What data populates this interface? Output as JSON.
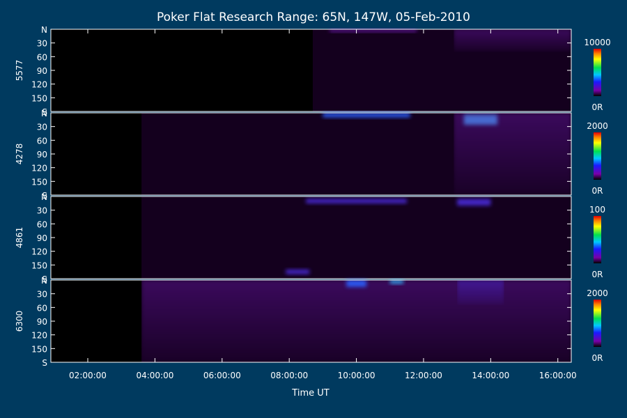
{
  "chart_data": {
    "type": "heatmap",
    "title": "Poker Flat Research Range: 65N, 147W, 05-Feb-2010",
    "xlabel": "Time UT",
    "x_range_hours": [
      0.9,
      16.4
    ],
    "x_ticks": [
      "02:00:00",
      "04:00:00",
      "06:00:00",
      "08:00:00",
      "10:00:00",
      "12:00:00",
      "14:00:00",
      "16:00:00"
    ],
    "x_tick_hours": [
      2,
      4,
      6,
      8,
      10,
      12,
      14,
      16
    ],
    "y_range_deg": [
      0,
      180
    ],
    "y_ticks": [
      "N",
      "30",
      "60",
      "90",
      "120",
      "150",
      "S"
    ],
    "y_tick_values": [
      0,
      30,
      60,
      90,
      120,
      150,
      180
    ],
    "colorbar_min_label": "0R",
    "panels": [
      {
        "label": "5577",
        "colorbar_max": "10000",
        "data_start_hour": 8.7,
        "features": [
          {
            "t0": 9.2,
            "t1": 11.8,
            "y0": 0,
            "y1": 6,
            "level": 0.35
          },
          {
            "t0": 12.9,
            "t1": 16.4,
            "y0": 0,
            "y1": 50,
            "level": 0.3
          }
        ]
      },
      {
        "label": "4278",
        "colorbar_max": "2000",
        "data_start_hour": 3.6,
        "features": [
          {
            "t0": 9.0,
            "t1": 11.6,
            "y0": 0,
            "y1": 10,
            "level": 0.55
          },
          {
            "t0": 13.2,
            "t1": 14.2,
            "y0": 4,
            "y1": 26,
            "level": 0.7
          },
          {
            "t0": 12.9,
            "t1": 16.4,
            "y0": 0,
            "y1": 180,
            "level": 0.25
          }
        ]
      },
      {
        "label": "4861",
        "colorbar_max": "100",
        "data_start_hour": 3.6,
        "features": [
          {
            "t0": 8.5,
            "t1": 11.5,
            "y0": 5,
            "y1": 15,
            "level": 0.5
          },
          {
            "t0": 13.0,
            "t1": 14.0,
            "y0": 5,
            "y1": 20,
            "level": 0.45
          },
          {
            "t0": 7.9,
            "t1": 8.6,
            "y0": 160,
            "y1": 170,
            "level": 0.45
          }
        ]
      },
      {
        "label": "6300",
        "colorbar_max": "2000",
        "data_start_hour": 3.6,
        "features": [
          {
            "t0": 3.6,
            "t1": 16.4,
            "y0": 0,
            "y1": 180,
            "level": 0.3
          },
          {
            "t0": 9.7,
            "t1": 10.3,
            "y0": 0,
            "y1": 15,
            "level": 0.6
          },
          {
            "t0": 11.0,
            "t1": 11.4,
            "y0": 0,
            "y1": 8,
            "level": 0.65
          },
          {
            "t0": 13.0,
            "t1": 14.4,
            "y0": 0,
            "y1": 55,
            "level": 0.45
          }
        ]
      }
    ]
  }
}
